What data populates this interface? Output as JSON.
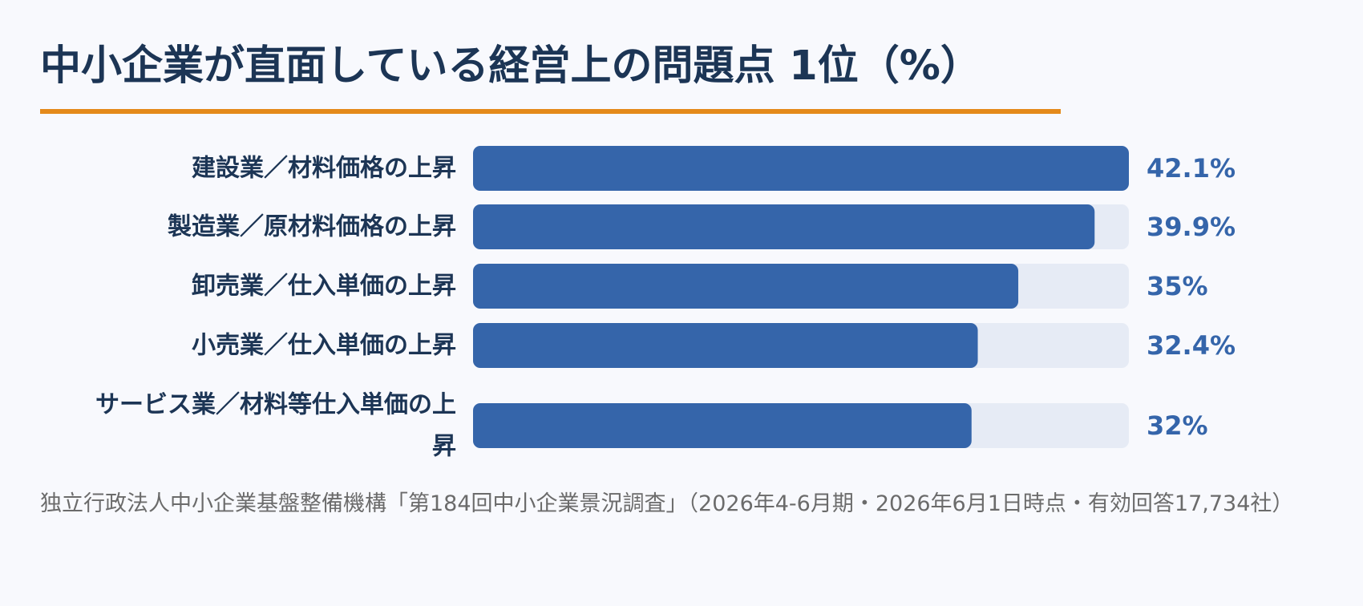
{
  "title": "中小企業が直面している経営上の問題点 1位（%）",
  "source": "独立行政法人中小企業基盤整備機構「第184回中小企業景況調査」（2026年4-6月期・2026年6月1日時点・有効回答17,734社）",
  "colors": {
    "accent": "#e48a1b",
    "bar": "#3565aa",
    "track": "#e6ebf5",
    "text": "#1c3555",
    "value": "#3565aa",
    "source": "#6b6b6b"
  },
  "chart_data": {
    "type": "bar",
    "orientation": "horizontal",
    "categories": [
      "建設業／材料価格の上昇",
      "製造業／原材料価格の上昇",
      "卸売業／仕入単価の上昇",
      "小売業／仕入単価の上昇",
      "サービス業／材料等仕入単価の上昇"
    ],
    "category_lines": [
      [
        "建設業／材料価格の上昇"
      ],
      [
        "製造業／原材料価格の上昇"
      ],
      [
        "卸売業／仕入単価の上昇"
      ],
      [
        "小売業／仕入単価の上昇"
      ],
      [
        "サービス業／材料等仕入単価の上",
        "昇"
      ]
    ],
    "values": [
      42.1,
      39.9,
      35,
      32.4,
      32
    ],
    "value_labels": [
      "42.1%",
      "39.9%",
      "35%",
      "32.4%",
      "32%"
    ],
    "xlim": [
      0,
      42.1
    ],
    "grid": false,
    "legend": "none"
  }
}
